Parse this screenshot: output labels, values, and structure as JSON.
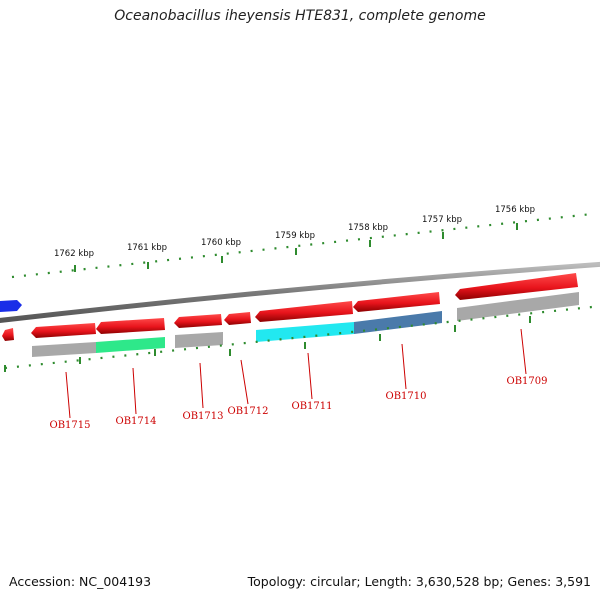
{
  "title": "Oceanobacillus iheyensis HTE831, complete genome",
  "footer": {
    "accession": "Accession: NC_004193",
    "summary": "Topology: circular; Length: 3,630,528 bp; Genes: 3,591"
  },
  "scale": {
    "unit": "kbp",
    "ticks": [
      "1762 kbp",
      "1761 kbp",
      "1760 kbp",
      "1759 kbp",
      "1758 kbp",
      "1757 kbp",
      "1756 kbp"
    ]
  },
  "genes": [
    {
      "label": "OB1715"
    },
    {
      "label": "OB1714"
    },
    {
      "label": "OB1713"
    },
    {
      "label": "OB1712"
    },
    {
      "label": "OB1711"
    },
    {
      "label": "OB1710"
    },
    {
      "label": "OB1709"
    }
  ],
  "colors": {
    "gene": "#e8141c",
    "backbone": "#8a8a8a",
    "tick": "#2e8b2e",
    "label": "#cc0000",
    "upstream_gene": "#1a2ee8",
    "annotation_gray": "#a8a8a8",
    "annotation_green": "#2ee88a",
    "annotation_cyan": "#22e8f0",
    "annotation_blue": "#4a7aaa"
  }
}
